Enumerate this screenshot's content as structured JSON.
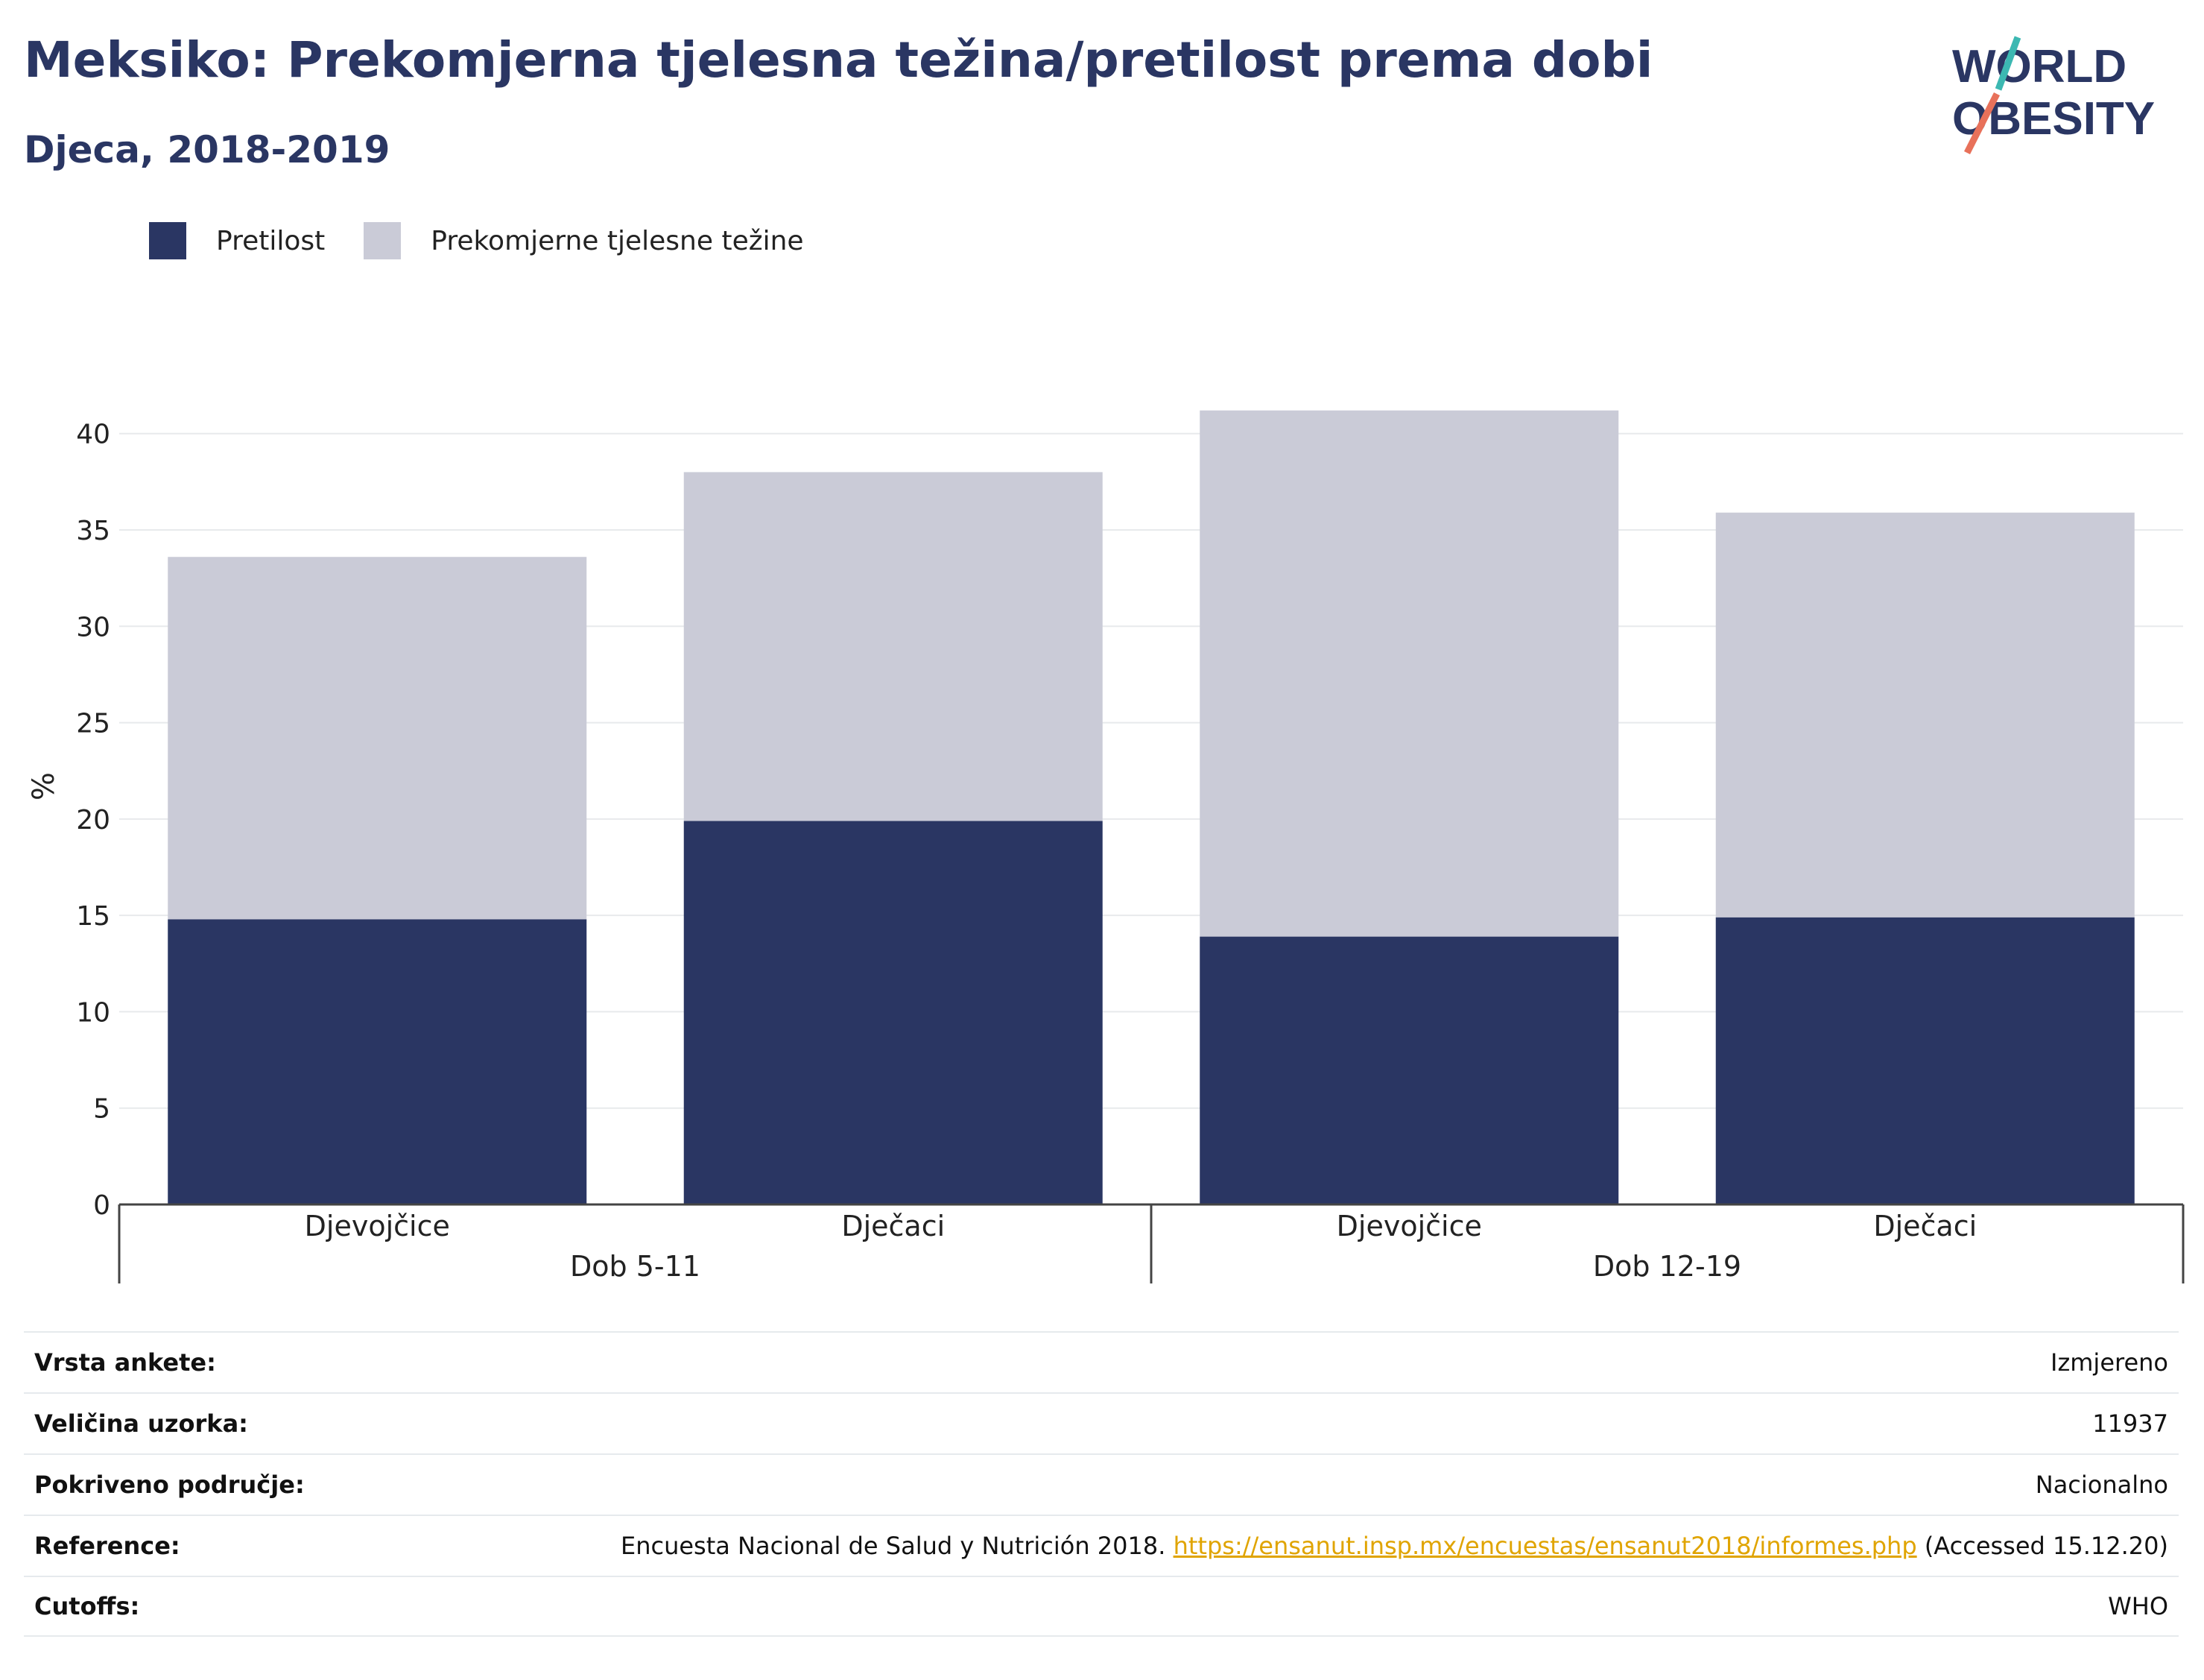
{
  "title": "Meksiko: Prekomjerna tjelesna težina/pretilost prema dobi",
  "subtitle": "Djeca, 2018-2019",
  "logo": {
    "line1": "WORLD",
    "line2": "OBESITY"
  },
  "legend": [
    {
      "label": "Pretilost",
      "color": "#2a3663"
    },
    {
      "label": "Prekomjerne tjelesne težine",
      "color": "#cacbd7"
    }
  ],
  "chart_data": {
    "type": "bar",
    "stacked": true,
    "ylabel": "%",
    "ylim": [
      0,
      42
    ],
    "yticks": [
      0,
      5,
      10,
      15,
      20,
      25,
      30,
      35,
      40
    ],
    "grid": true,
    "legend_position": "top-left",
    "groups": [
      {
        "label": "Dob 5-11",
        "categories": [
          "Djevojčice",
          "Dječaci"
        ]
      },
      {
        "label": "Dob 12-19",
        "categories": [
          "Djevojčice",
          "Dječaci"
        ]
      }
    ],
    "categories": [
      "Djevojčice",
      "Dječaci",
      "Djevojčice",
      "Dječaci"
    ],
    "series": [
      {
        "name": "Pretilost",
        "color": "#2a3663",
        "values": [
          14.8,
          19.9,
          13.9,
          14.9
        ]
      },
      {
        "name": "Prekomjerne tjelesne težine",
        "color": "#cacbd7",
        "values": [
          18.8,
          18.1,
          27.3,
          21.0
        ]
      }
    ]
  },
  "info": [
    {
      "label": "Vrsta ankete:",
      "value": "Izmjereno"
    },
    {
      "label": "Veličina uzorka:",
      "value": "11937"
    },
    {
      "label": "Pokriveno područje:",
      "value": "Nacionalno"
    },
    {
      "label": "Reference:",
      "value_pre": "Encuesta Nacional de Salud y Nutrición 2018.",
      "link": "https://ensanut.insp.mx/encuestas/ensanut2018/informes.php",
      "value_post": "(Accessed 15.12.20)"
    },
    {
      "label": "Cutoffs:",
      "value": "WHO"
    }
  ]
}
